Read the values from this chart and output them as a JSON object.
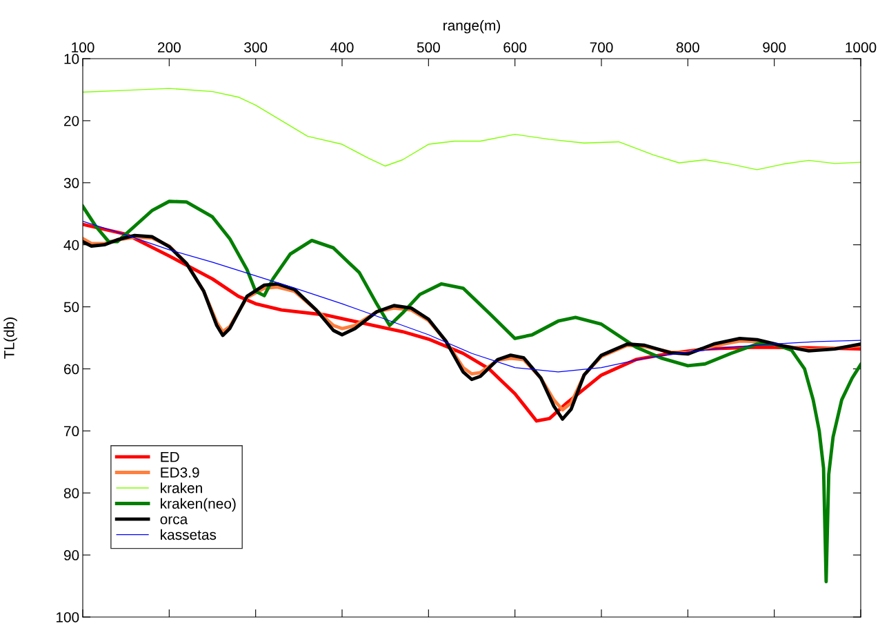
{
  "chart_data": {
    "type": "line",
    "xlabel": "range(m)",
    "ylabel": "TL(db)",
    "xlim": [
      100,
      1000
    ],
    "xticks": [
      100,
      200,
      300,
      400,
      500,
      600,
      700,
      800,
      900,
      1000
    ],
    "ylim": [
      100,
      10
    ],
    "yticks": [
      10,
      20,
      30,
      40,
      50,
      60,
      70,
      80,
      90,
      100
    ],
    "grid": false,
    "legend": "bottom left",
    "marker": "none",
    "line_style": "solid",
    "series": [
      {
        "name": "ED",
        "color": "#ff0000",
        "x": [
          100,
          150,
          200,
          250,
          280,
          300,
          330,
          380,
          420,
          470,
          500,
          540,
          570,
          600,
          625,
          640,
          660,
          700,
          740,
          780,
          820,
          880,
          940,
          1000
        ],
        "values": [
          36.7,
          38.3,
          41.8,
          45.5,
          48.3,
          49.5,
          50.5,
          51.3,
          52.5,
          54,
          55.2,
          57.5,
          60,
          64,
          68.4,
          68,
          65.5,
          61,
          58.5,
          57.5,
          56.8,
          56.5,
          56.6,
          56.8
        ]
      },
      {
        "name": "ED3.9",
        "color": "#ff7f3f",
        "x": [
          100,
          110,
          125,
          140,
          160,
          180,
          200,
          220,
          240,
          255,
          262,
          270,
          290,
          310,
          325,
          345,
          370,
          390,
          400,
          415,
          440,
          460,
          480,
          500,
          520,
          540,
          550,
          560,
          580,
          595,
          610,
          630,
          645,
          655,
          665,
          680,
          700,
          730,
          750,
          780,
          800,
          830,
          860,
          880,
          910,
          940,
          970,
          1000
        ],
        "values": [
          39,
          39.8,
          39.8,
          39.2,
          38.8,
          38.9,
          40.2,
          43,
          47.5,
          52.5,
          54,
          53.2,
          48.5,
          47,
          46.8,
          47.5,
          50.5,
          53,
          53.5,
          53,
          50.8,
          50.2,
          50.5,
          52.2,
          55.5,
          59.8,
          60.8,
          60.6,
          58.6,
          58.3,
          58.5,
          61.5,
          65,
          66.6,
          65.5,
          61,
          58,
          56.2,
          56.4,
          57.3,
          57.4,
          56.3,
          55.5,
          55.6,
          56.3,
          56.9,
          56.7,
          56.2
        ]
      },
      {
        "name": "kraken",
        "color": "#7fff00",
        "x": [
          100,
          150,
          200,
          250,
          280,
          300,
          330,
          360,
          400,
          430,
          450,
          470,
          500,
          530,
          560,
          600,
          640,
          680,
          720,
          760,
          790,
          820,
          850,
          880,
          910,
          940,
          970,
          1000
        ],
        "values": [
          15.4,
          15.1,
          14.8,
          15.3,
          16.2,
          17.5,
          20,
          22.5,
          23.8,
          26,
          27.3,
          26.3,
          23.8,
          23.3,
          23.3,
          22.2,
          23,
          23.6,
          23.4,
          25.5,
          26.8,
          26.3,
          27,
          27.9,
          27,
          26.4,
          26.9,
          26.7
        ]
      },
      {
        "name": "kraken(neo)",
        "color": "#007f00",
        "x": [
          100,
          115,
          130,
          140,
          160,
          180,
          200,
          220,
          250,
          270,
          290,
          300,
          310,
          320,
          340,
          365,
          390,
          420,
          440,
          455,
          470,
          490,
          515,
          540,
          570,
          600,
          620,
          650,
          670,
          700,
          740,
          770,
          800,
          820,
          850,
          880,
          900,
          920,
          935,
          945,
          952,
          957,
          960,
          963,
          968,
          978,
          990,
          1000
        ],
        "values": [
          33.8,
          37,
          39.5,
          39.5,
          37,
          34.5,
          33,
          33.1,
          35.5,
          39,
          44,
          47.5,
          48.2,
          45.5,
          41.5,
          39.3,
          40.5,
          44.5,
          49.5,
          53,
          51,
          48,
          46.3,
          47,
          51,
          55.1,
          54.5,
          52.3,
          51.7,
          52.8,
          56.5,
          58.3,
          59.5,
          59.2,
          57.5,
          56,
          56,
          57,
          60,
          65,
          70,
          76,
          94.3,
          77,
          71,
          65,
          61.5,
          59.3
        ]
      },
      {
        "name": "orca",
        "color": "#000000",
        "x": [
          100,
          110,
          125,
          140,
          160,
          180,
          200,
          220,
          240,
          255,
          262,
          270,
          290,
          310,
          325,
          345,
          370,
          390,
          400,
          415,
          440,
          460,
          480,
          500,
          520,
          540,
          550,
          560,
          580,
          595,
          610,
          630,
          645,
          655,
          665,
          680,
          700,
          730,
          750,
          780,
          800,
          830,
          860,
          880,
          910,
          940,
          970,
          1000
        ],
        "values": [
          39.5,
          40.2,
          40,
          39.2,
          38.5,
          38.7,
          40.3,
          43,
          47.5,
          53,
          54.6,
          53.5,
          48.3,
          46.5,
          46.3,
          47.2,
          50.5,
          53.8,
          54.5,
          53.5,
          50.8,
          49.8,
          50.2,
          52,
          55.5,
          60.5,
          61.7,
          61.2,
          58.5,
          57.8,
          58.2,
          61.5,
          66,
          68.1,
          66.5,
          61,
          57.8,
          56,
          56.2,
          57.4,
          57.6,
          56,
          55.1,
          55.3,
          56.3,
          57.1,
          56.8,
          56
        ]
      },
      {
        "name": "kassetas",
        "color": "#0000ff",
        "x": [
          100,
          150,
          200,
          250,
          300,
          350,
          400,
          450,
          500,
          550,
          600,
          650,
          700,
          750,
          800,
          850,
          900,
          950,
          1000
        ],
        "values": [
          36.2,
          38.4,
          40.8,
          42.8,
          45,
          47.2,
          49.5,
          52,
          54.5,
          57.5,
          59.8,
          60.5,
          59.8,
          58.3,
          57.3,
          56.5,
          56,
          55.6,
          55.4
        ]
      }
    ]
  }
}
